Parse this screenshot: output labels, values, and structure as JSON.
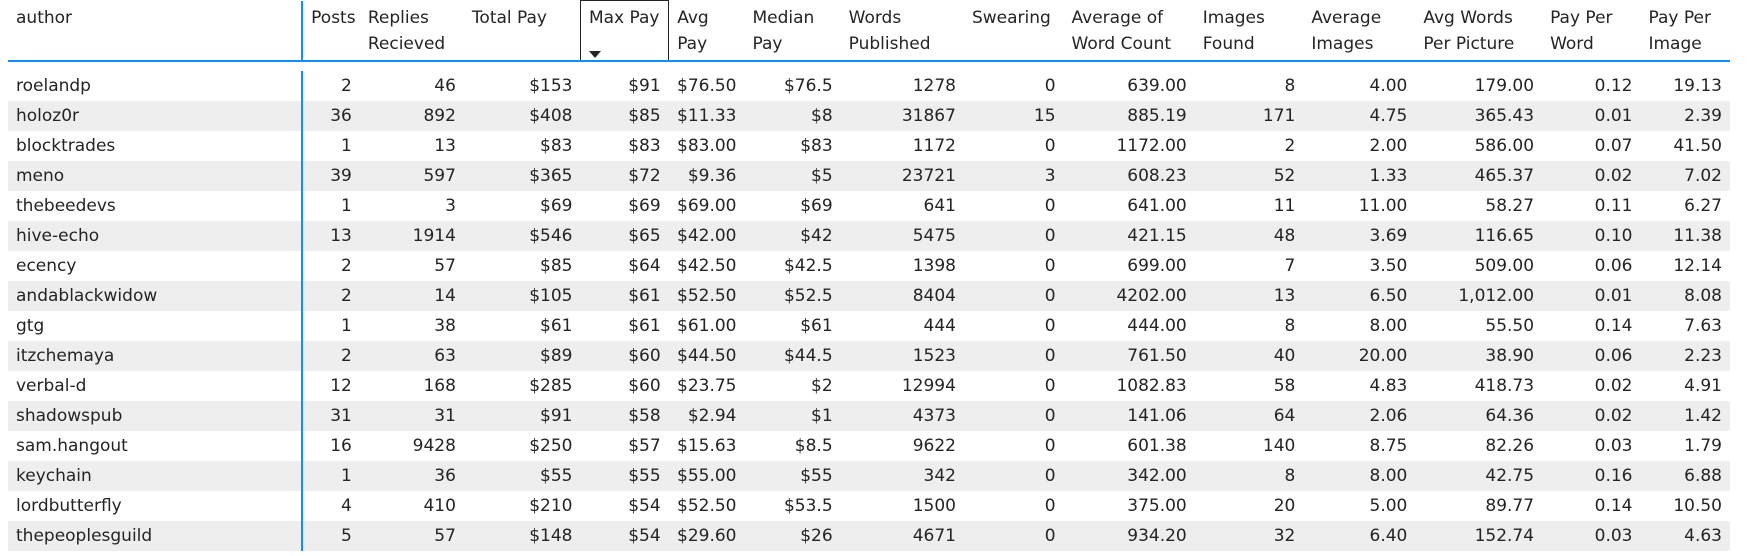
{
  "table": {
    "columns": [
      {
        "key": "author",
        "label": "author"
      },
      {
        "key": "posts",
        "label": "Posts"
      },
      {
        "key": "replies",
        "label": "Replies Recieved"
      },
      {
        "key": "total_pay",
        "label": "Total Pay"
      },
      {
        "key": "max_pay",
        "label": "Max Pay"
      },
      {
        "key": "avg_pay",
        "label": "Avg Pay"
      },
      {
        "key": "median_pay",
        "label": "Median Pay"
      },
      {
        "key": "words",
        "label": "Words Published"
      },
      {
        "key": "swearing",
        "label": "Swearing"
      },
      {
        "key": "avg_word_count",
        "label": "Average of Word Count"
      },
      {
        "key": "images_found",
        "label": "Images Found"
      },
      {
        "key": "avg_images",
        "label": "Average Images"
      },
      {
        "key": "avg_words_per_picture",
        "label": "Avg Words Per Picture"
      },
      {
        "key": "pay_per_word",
        "label": "Pay Per Word"
      },
      {
        "key": "pay_per_image",
        "label": "Pay Per Image"
      }
    ],
    "sorted_column": "max_pay",
    "sort_direction": "descending",
    "rows": [
      [
        "roelandp",
        "2",
        "46",
        "$153",
        "$91",
        "$76.50",
        "$76.5",
        "1278",
        "0",
        "639.00",
        "8",
        "4.00",
        "179.00",
        "0.12",
        "19.13"
      ],
      [
        "holoz0r",
        "36",
        "892",
        "$408",
        "$85",
        "$11.33",
        "$8",
        "31867",
        "15",
        "885.19",
        "171",
        "4.75",
        "365.43",
        "0.01",
        "2.39"
      ],
      [
        "blocktrades",
        "1",
        "13",
        "$83",
        "$83",
        "$83.00",
        "$83",
        "1172",
        "0",
        "1172.00",
        "2",
        "2.00",
        "586.00",
        "0.07",
        "41.50"
      ],
      [
        "meno",
        "39",
        "597",
        "$365",
        "$72",
        "$9.36",
        "$5",
        "23721",
        "3",
        "608.23",
        "52",
        "1.33",
        "465.37",
        "0.02",
        "7.02"
      ],
      [
        "thebeedevs",
        "1",
        "3",
        "$69",
        "$69",
        "$69.00",
        "$69",
        "641",
        "0",
        "641.00",
        "11",
        "11.00",
        "58.27",
        "0.11",
        "6.27"
      ],
      [
        "hive-echo",
        "13",
        "1914",
        "$546",
        "$65",
        "$42.00",
        "$42",
        "5475",
        "0",
        "421.15",
        "48",
        "3.69",
        "116.65",
        "0.10",
        "11.38"
      ],
      [
        "ecency",
        "2",
        "57",
        "$85",
        "$64",
        "$42.50",
        "$42.5",
        "1398",
        "0",
        "699.00",
        "7",
        "3.50",
        "509.00",
        "0.06",
        "12.14"
      ],
      [
        "andablackwidow",
        "2",
        "14",
        "$105",
        "$61",
        "$52.50",
        "$52.5",
        "8404",
        "0",
        "4202.00",
        "13",
        "6.50",
        "1,012.00",
        "0.01",
        "8.08"
      ],
      [
        "gtg",
        "1",
        "38",
        "$61",
        "$61",
        "$61.00",
        "$61",
        "444",
        "0",
        "444.00",
        "8",
        "8.00",
        "55.50",
        "0.14",
        "7.63"
      ],
      [
        "itzchemaya",
        "2",
        "63",
        "$89",
        "$60",
        "$44.50",
        "$44.5",
        "1523",
        "0",
        "761.50",
        "40",
        "20.00",
        "38.90",
        "0.06",
        "2.23"
      ],
      [
        "verbal-d",
        "12",
        "168",
        "$285",
        "$60",
        "$23.75",
        "$2",
        "12994",
        "0",
        "1082.83",
        "58",
        "4.83",
        "418.73",
        "0.02",
        "4.91"
      ],
      [
        "shadowspub",
        "31",
        "31",
        "$91",
        "$58",
        "$2.94",
        "$1",
        "4373",
        "0",
        "141.06",
        "64",
        "2.06",
        "64.36",
        "0.02",
        "1.42"
      ],
      [
        "sam.hangout",
        "16",
        "9428",
        "$250",
        "$57",
        "$15.63",
        "$8.5",
        "9622",
        "0",
        "601.38",
        "140",
        "8.75",
        "82.26",
        "0.03",
        "1.79"
      ],
      [
        "keychain",
        "1",
        "36",
        "$55",
        "$55",
        "$55.00",
        "$55",
        "342",
        "0",
        "342.00",
        "8",
        "8.00",
        "42.75",
        "0.16",
        "6.88"
      ],
      [
        "lordbutterfly",
        "4",
        "410",
        "$210",
        "$54",
        "$52.50",
        "$53.5",
        "1500",
        "0",
        "375.00",
        "20",
        "5.00",
        "89.77",
        "0.14",
        "10.50"
      ],
      [
        "thepeoplesguild",
        "5",
        "57",
        "$148",
        "$54",
        "$29.60",
        "$26",
        "4671",
        "0",
        "934.20",
        "32",
        "6.40",
        "152.74",
        "0.03",
        "4.63"
      ]
    ]
  }
}
